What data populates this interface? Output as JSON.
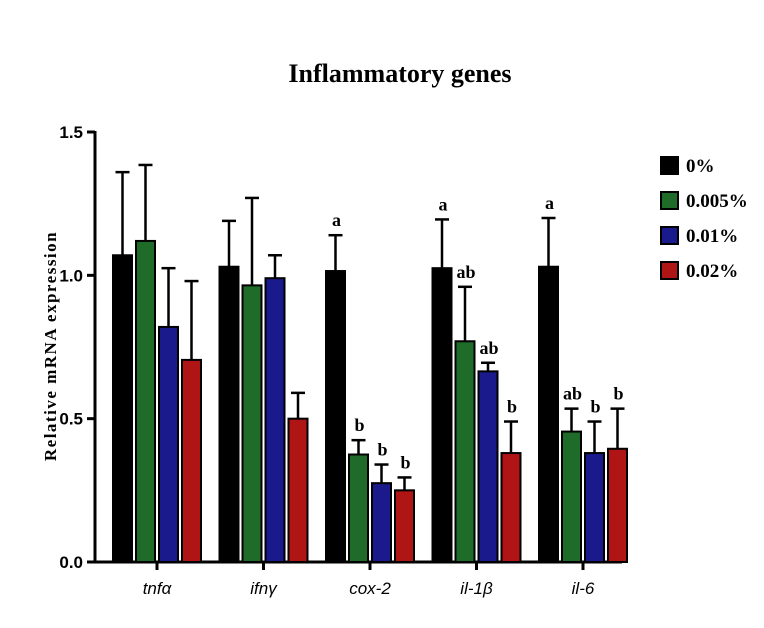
{
  "chart_data": {
    "type": "bar",
    "title": "Inflammatory genes",
    "xlabel": "",
    "ylabel": "Relative mRNA expression",
    "ylim": [
      0,
      1.5
    ],
    "yticks": [
      0.0,
      0.5,
      1.0,
      1.5
    ],
    "ytick_labels": [
      "0.0",
      "0.5",
      "1.0",
      "1.5"
    ],
    "categories": [
      "tnfα",
      "ifnγ",
      "cox-2",
      "il-1β",
      "il-6"
    ],
    "legend_position": "right",
    "series": [
      {
        "name": "0%",
        "color": "#000000",
        "values": [
          1.07,
          1.03,
          1.015,
          1.025,
          1.03
        ],
        "errors": [
          0.29,
          0.16,
          0.125,
          0.17,
          0.17
        ],
        "labels": [
          "",
          "",
          "a",
          "a",
          "a"
        ]
      },
      {
        "name": "0.005%",
        "color": "#1f6b2a",
        "values": [
          1.12,
          0.965,
          0.375,
          0.77,
          0.455
        ],
        "errors": [
          0.265,
          0.305,
          0.05,
          0.19,
          0.08
        ],
        "labels": [
          "",
          "",
          "b",
          "ab",
          "ab"
        ]
      },
      {
        "name": "0.01%",
        "color": "#1a1a8c",
        "values": [
          0.82,
          0.99,
          0.275,
          0.665,
          0.38
        ],
        "errors": [
          0.205,
          0.08,
          0.065,
          0.03,
          0.11
        ],
        "labels": [
          "",
          "",
          "b",
          "ab",
          "b"
        ]
      },
      {
        "name": "0.02%",
        "color": "#b01515",
        "values": [
          0.705,
          0.5,
          0.25,
          0.38,
          0.395
        ],
        "errors": [
          0.275,
          0.09,
          0.045,
          0.11,
          0.14
        ],
        "labels": [
          "",
          "",
          "b",
          "b",
          "b"
        ]
      }
    ]
  }
}
